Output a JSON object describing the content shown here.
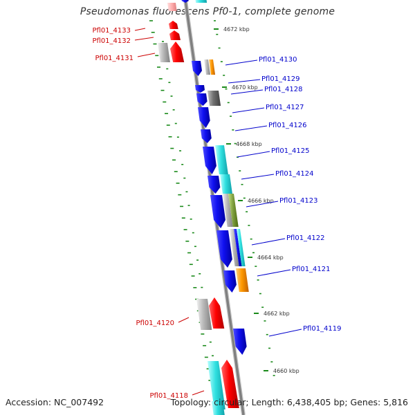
{
  "title": "Pseudomonas fluorescens Pf0-1, complete genome",
  "footer": {
    "accession": "Accession: NC_007492",
    "topology": "Topology: circular; Length: 6,438,405 bp; Genes: 5,816"
  },
  "colors": {
    "forward_label": "#0000cc",
    "reverse_label": "#cc0000",
    "backbone": "#808080",
    "tick": "#1a8a1a"
  },
  "kbp_ticks": [
    "4672 kbp",
    "4670 kbp",
    "4668 kbp",
    "4666 kbp",
    "4664 kbp",
    "4662 kbp",
    "4660 kbp"
  ],
  "genes_forward": [
    "Pfl01_4130",
    "Pfl01_4129",
    "Pfl01_4128",
    "Pfl01_4127",
    "Pfl01_4126",
    "Pfl01_4125",
    "Pfl01_4124",
    "Pfl01_4123",
    "Pfl01_4122",
    "Pfl01_4121",
    "Pfl01_4119"
  ],
  "genes_reverse": [
    "Pfl01_4133",
    "Pfl01_4132",
    "Pfl01_4131",
    "Pfl01_4120",
    "Pfl01_4118"
  ]
}
